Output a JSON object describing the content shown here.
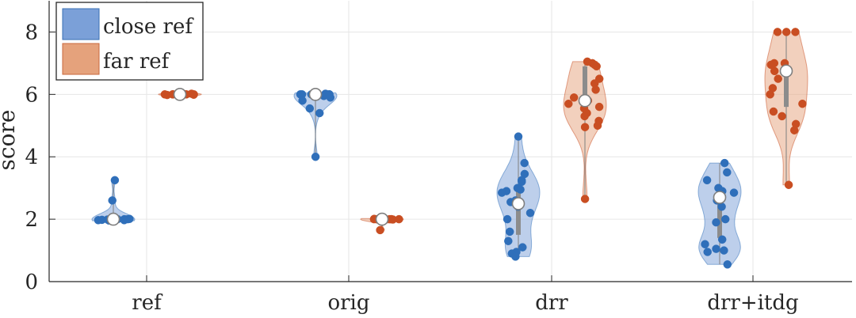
{
  "chart_data": {
    "type": "violin",
    "title": "",
    "xlabel": "",
    "ylabel": "score",
    "ylim": [
      0,
      9
    ],
    "yticks": [
      0,
      2,
      4,
      6,
      8
    ],
    "grid": true,
    "legend_position": "top-left",
    "categories": [
      "ref",
      "orig",
      "drr",
      "drr+itdg"
    ],
    "series": [
      {
        "name": "close ref",
        "color": "#2f6fba",
        "fill": "#7ba0d8",
        "groups": [
          {
            "category": "ref",
            "median": 2.0,
            "q1": 2.0,
            "q3": 2.0,
            "min": 1.95,
            "max": 3.25,
            "points": [
              2.0,
              1.97,
              2.0,
              1.96,
              2.02,
              2.0,
              1.98,
              1.99,
              2.0,
              2.01,
              2.0,
              2.6,
              3.25,
              1.97
            ]
          },
          {
            "category": "orig",
            "median": 6.0,
            "q1": 5.95,
            "q3": 6.0,
            "min": 4.0,
            "max": 6.05,
            "points": [
              6.0,
              6.0,
              5.98,
              6.02,
              6.0,
              5.95,
              6.0,
              6.0,
              5.9,
              5.55,
              5.4,
              5.8,
              4.0,
              6.0,
              6.0
            ]
          },
          {
            "category": "drr",
            "median": 2.5,
            "q1": 1.5,
            "q3": 3.0,
            "min": 0.8,
            "max": 4.65,
            "points": [
              4.65,
              3.8,
              3.45,
              3.25,
              3.0,
              2.95,
              2.9,
              2.6,
              2.55,
              2.4,
              2.2,
              2.0,
              1.6,
              1.3,
              1.1,
              0.95,
              0.9,
              0.8,
              2.85,
              3.2
            ]
          },
          {
            "category": "drr+itdg",
            "median": 2.7,
            "q1": 1.4,
            "q3": 2.9,
            "min": 0.55,
            "max": 3.8,
            "points": [
              3.8,
              3.5,
              3.25,
              3.0,
              2.9,
              2.85,
              2.6,
              2.4,
              2.0,
              1.9,
              1.35,
              1.2,
              1.05,
              1.0,
              0.95,
              0.55
            ]
          }
        ]
      },
      {
        "name": "far ref",
        "color": "#c94e22",
        "fill": "#e5a27c",
        "groups": [
          {
            "category": "ref",
            "median": 6.0,
            "q1": 6.0,
            "q3": 6.0,
            "min": 5.97,
            "max": 6.03,
            "points": [
              6.0,
              6.0,
              5.99,
              6.01,
              6.0,
              6.0,
              5.98,
              6.02,
              6.0,
              6.0
            ]
          },
          {
            "category": "orig",
            "median": 2.0,
            "q1": 2.0,
            "q3": 2.0,
            "min": 1.65,
            "max": 2.02,
            "points": [
              2.0,
              2.0,
              1.99,
              2.01,
              2.0,
              2.0,
              1.98,
              2.0,
              1.65,
              2.0
            ]
          },
          {
            "category": "drr",
            "median": 5.8,
            "q1": 5.4,
            "q3": 6.9,
            "min": 2.65,
            "max": 7.05,
            "points": [
              7.05,
              7.0,
              6.95,
              6.9,
              6.5,
              6.35,
              6.15,
              5.9,
              5.8,
              5.6,
              5.55,
              5.4,
              5.3,
              5.15,
              5.0,
              4.95,
              2.65,
              5.7
            ]
          },
          {
            "category": "drr+itdg",
            "median": 6.75,
            "q1": 5.6,
            "q3": 7.0,
            "min": 3.1,
            "max": 8.0,
            "points": [
              8.0,
              8.0,
              8.0,
              7.0,
              7.0,
              6.95,
              6.75,
              6.5,
              6.2,
              6.0,
              5.7,
              5.45,
              5.3,
              5.05,
              4.85,
              3.1
            ]
          }
        ]
      }
    ]
  }
}
